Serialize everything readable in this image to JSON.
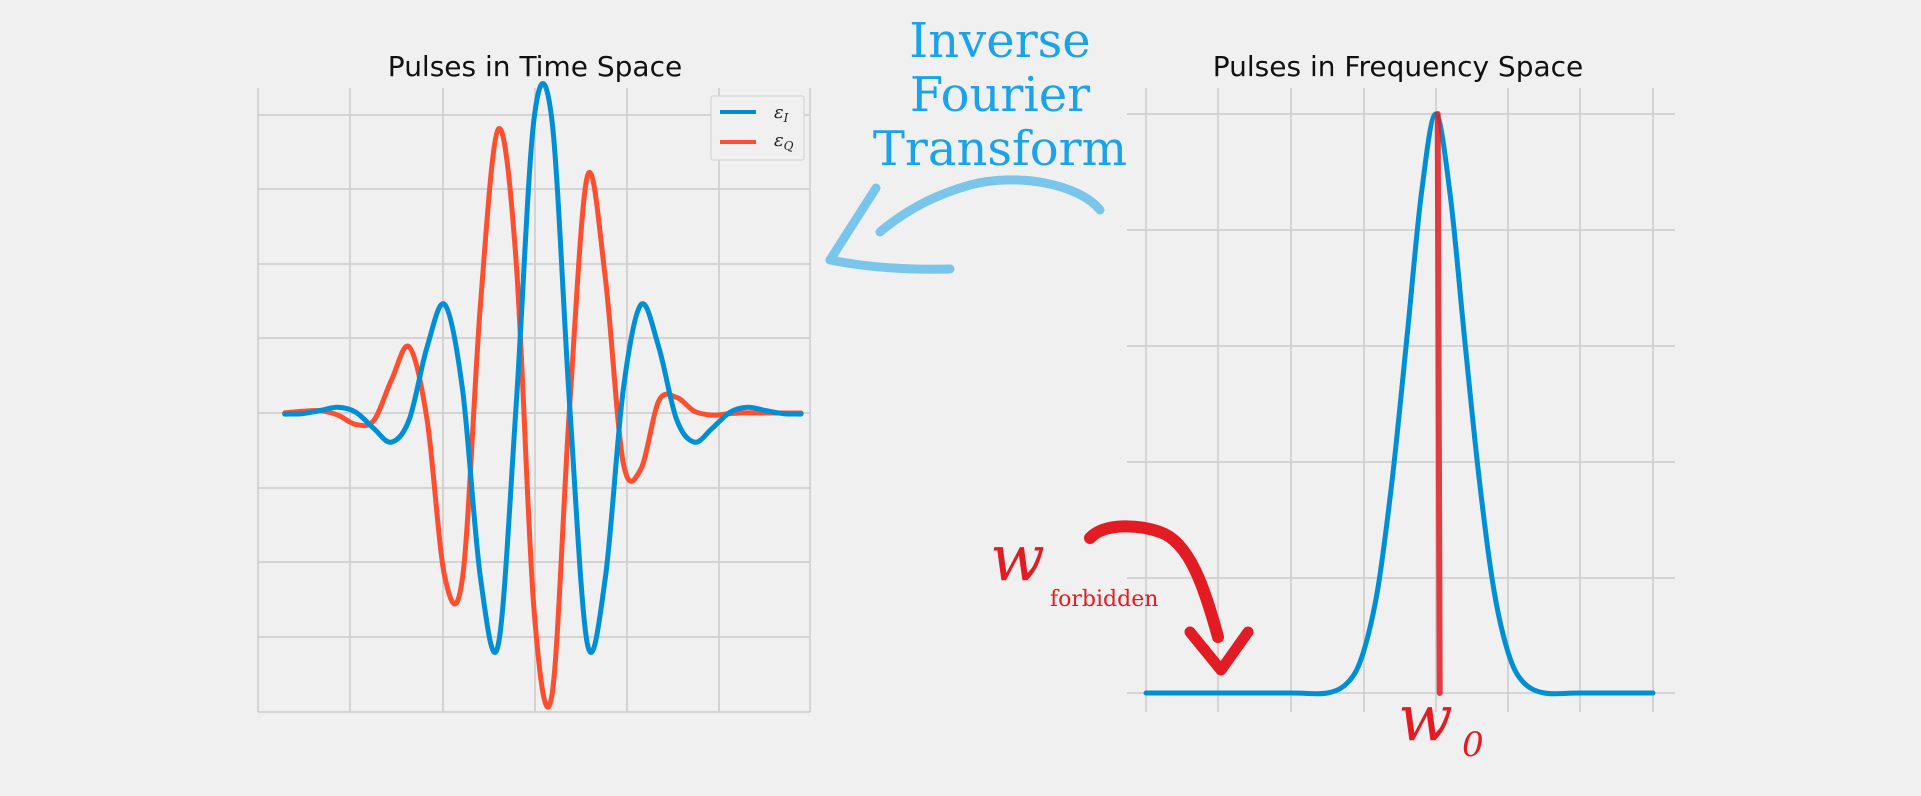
{
  "colors": {
    "background": "#f0f0f0",
    "grid": "#cbcbcb",
    "series_i": "#008fd5",
    "series_q": "#fc4f30",
    "annotation_blue": "#1aa3e8",
    "annotation_red": "#e31b23"
  },
  "annotations": {
    "transform_lines": [
      "Inverse",
      "Fourier",
      "Transform"
    ],
    "omega_forbidden_symbol": "w",
    "omega_forbidden_subscript": "forbidden",
    "omega_zero_symbol": "w",
    "omega_zero_subscript": "0"
  },
  "chart_data": [
    {
      "type": "line",
      "title": "Pulses in Time Space",
      "xlabel": "",
      "ylabel": "",
      "xlim": [
        -3.2,
        3.0
      ],
      "ylim": [
        -1.0,
        1.0
      ],
      "grid": true,
      "legend_position": "top-right",
      "tick_labels": "none",
      "series": [
        {
          "name": "ε_I",
          "legend_main": "ε",
          "legend_sub": "I",
          "color": "#008fd5",
          "x": [
            -2.9,
            -2.7,
            -2.5,
            -2.3,
            -2.1,
            -1.9,
            -1.7,
            -1.5,
            -1.3,
            -1.1,
            -0.9,
            -0.7,
            -0.5,
            -0.3,
            -0.1,
            0.1,
            0.3,
            0.5,
            0.7,
            0.9,
            1.1,
            1.3,
            1.5,
            1.7,
            1.9,
            2.1,
            2.3,
            2.5,
            2.7,
            2.9
          ],
          "y": [
            -0.0036,
            -0.0019,
            0.0083,
            0.0189,
            0.0023,
            -0.0513,
            -0.0971,
            -0.0205,
            0.2213,
            0.3607,
            0.0709,
            -0.5522,
            -0.7701,
            0.0283,
            0.9794,
            0.9794,
            0.0283,
            -0.7701,
            -0.5522,
            0.0709,
            0.3607,
            0.2213,
            -0.0205,
            -0.0971,
            -0.0513,
            0.0023,
            0.0189,
            0.0083,
            -0.0019,
            -0.0036
          ]
        },
        {
          "name": "ε_Q",
          "legend_main": "ε",
          "legend_sub": "Q",
          "color": "#fc4f30",
          "x": [
            -2.9,
            -2.7,
            -2.5,
            -2.3,
            -2.1,
            -1.9,
            -1.7,
            -1.5,
            -1.3,
            -1.1,
            -0.9,
            -0.7,
            -0.5,
            -0.3,
            -0.1,
            0.1,
            0.3,
            0.5,
            0.7,
            0.9,
            1.1,
            1.3,
            1.5,
            1.7,
            1.9,
            2.1,
            2.3,
            2.5,
            2.7,
            2.9
          ],
          "y": [
            0.0003,
            0.0057,
            0.0078,
            -0.0074,
            -0.0384,
            -0.0253,
            0.1101,
            0.2198,
            -0.0253,
            -0.5499,
            -0.5421,
            0.3683,
            0.9467,
            0.5021,
            -0.6547,
            -0.9437,
            0.0211,
            0.7892,
            0.4536,
            -0.1623,
            -0.1872,
            0.0392,
            0.0521,
            0.0061,
            -0.0071,
            -0.0019,
            0.0007,
            0.0002,
            0.0,
            0.0
          ]
        }
      ]
    },
    {
      "type": "line",
      "title": "Pulses in Frequency Space",
      "xlabel": "",
      "ylabel": "",
      "xlim": [
        -4.0,
        3.0
      ],
      "ylim": [
        0.0,
        1.0
      ],
      "grid": true,
      "tick_labels": "none",
      "series": [
        {
          "color": "#008fd5",
          "x": [
            -4.0,
            -3.0,
            -2.0,
            -1.5,
            -1.2,
            -1.0,
            -0.8,
            -0.6,
            -0.4,
            -0.2,
            0.0,
            0.2,
            0.4,
            0.6,
            0.8,
            1.0,
            1.2,
            1.5,
            2.0,
            3.0
          ],
          "y": [
            0.0,
            0.0,
            0.0,
            0.0,
            0.02,
            0.07,
            0.18,
            0.37,
            0.61,
            0.86,
            1.0,
            0.86,
            0.61,
            0.37,
            0.18,
            0.07,
            0.02,
            0.0,
            0.0,
            0.0
          ]
        }
      ],
      "markers": [
        {
          "color": "#e31b23",
          "x": 0.0,
          "y_range": [
            0.0,
            1.0
          ]
        }
      ]
    }
  ]
}
